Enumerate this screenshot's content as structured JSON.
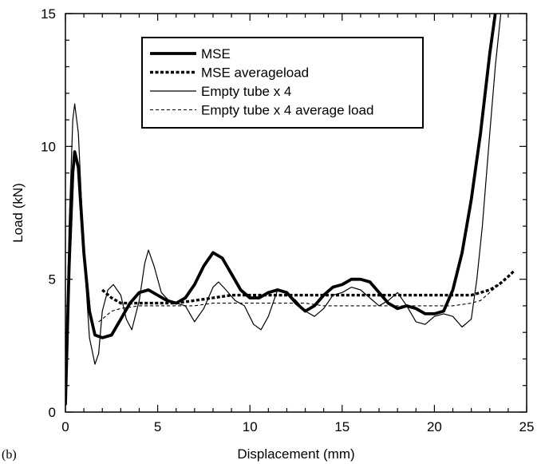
{
  "chart_data": {
    "type": "line",
    "panel_label": "(b)",
    "xlabel": "Displacement (mm)",
    "ylabel": "Load (kN)",
    "xlim": [
      0,
      25
    ],
    "ylim": [
      0,
      15
    ],
    "xticks": [
      0,
      5,
      10,
      15,
      20,
      25
    ],
    "yticks": [
      0,
      5,
      10,
      15
    ],
    "x_tick_labels": [
      "0",
      "5",
      "10",
      "15",
      "20",
      "25"
    ],
    "y_tick_labels": [
      "0",
      "5",
      "10",
      "15"
    ],
    "grid": false,
    "legend_position": "top-center",
    "series": [
      {
        "name": "MSE",
        "style": "thick-solid",
        "color": "#000000",
        "points": [
          [
            0,
            0.3
          ],
          [
            0.2,
            5.5
          ],
          [
            0.4,
            9.0
          ],
          [
            0.5,
            9.8
          ],
          [
            0.7,
            9.2
          ],
          [
            1.0,
            6.0
          ],
          [
            1.3,
            3.8
          ],
          [
            1.6,
            2.9
          ],
          [
            2.0,
            2.8
          ],
          [
            2.5,
            2.9
          ],
          [
            3.0,
            3.5
          ],
          [
            3.5,
            4.1
          ],
          [
            4.0,
            4.5
          ],
          [
            4.5,
            4.6
          ],
          [
            5.0,
            4.4
          ],
          [
            5.5,
            4.2
          ],
          [
            6.0,
            4.1
          ],
          [
            6.5,
            4.3
          ],
          [
            7.0,
            4.8
          ],
          [
            7.5,
            5.5
          ],
          [
            8.0,
            6.0
          ],
          [
            8.5,
            5.8
          ],
          [
            9.0,
            5.2
          ],
          [
            9.5,
            4.6
          ],
          [
            10.0,
            4.3
          ],
          [
            10.5,
            4.3
          ],
          [
            11.0,
            4.5
          ],
          [
            11.5,
            4.6
          ],
          [
            12.0,
            4.5
          ],
          [
            12.5,
            4.1
          ],
          [
            13.0,
            3.8
          ],
          [
            13.5,
            4.0
          ],
          [
            14.0,
            4.4
          ],
          [
            14.5,
            4.7
          ],
          [
            15.0,
            4.8
          ],
          [
            15.5,
            5.0
          ],
          [
            16.0,
            5.0
          ],
          [
            16.5,
            4.9
          ],
          [
            17.0,
            4.5
          ],
          [
            17.5,
            4.1
          ],
          [
            18.0,
            3.9
          ],
          [
            18.5,
            4.0
          ],
          [
            19.0,
            3.9
          ],
          [
            19.5,
            3.7
          ],
          [
            20.0,
            3.7
          ],
          [
            20.5,
            3.8
          ],
          [
            21.0,
            4.6
          ],
          [
            21.5,
            6.0
          ],
          [
            22.0,
            8.0
          ],
          [
            22.5,
            10.5
          ],
          [
            23.0,
            13.5
          ],
          [
            23.3,
            15.0
          ]
        ]
      },
      {
        "name": "MSE averageload",
        "style": "thick-dashed",
        "color": "#000000",
        "points": [
          [
            2.0,
            4.6
          ],
          [
            2.5,
            4.3
          ],
          [
            3.0,
            4.1
          ],
          [
            4.0,
            4.1
          ],
          [
            5.0,
            4.1
          ],
          [
            6.0,
            4.1
          ],
          [
            7.0,
            4.2
          ],
          [
            8.0,
            4.3
          ],
          [
            9.0,
            4.4
          ],
          [
            10.0,
            4.4
          ],
          [
            12.0,
            4.4
          ],
          [
            14.0,
            4.4
          ],
          [
            16.0,
            4.4
          ],
          [
            18.0,
            4.4
          ],
          [
            20.0,
            4.4
          ],
          [
            21.0,
            4.4
          ],
          [
            22.0,
            4.4
          ],
          [
            23.0,
            4.6
          ],
          [
            23.5,
            4.8
          ],
          [
            24.0,
            5.1
          ],
          [
            24.3,
            5.3
          ]
        ]
      },
      {
        "name": "Empty tube x 4",
        "style": "thin-solid",
        "color": "#000000",
        "points": [
          [
            0,
            0.5
          ],
          [
            0.2,
            7.0
          ],
          [
            0.4,
            11.0
          ],
          [
            0.5,
            11.6
          ],
          [
            0.7,
            10.5
          ],
          [
            1.0,
            6.0
          ],
          [
            1.3,
            2.8
          ],
          [
            1.6,
            1.8
          ],
          [
            1.8,
            2.2
          ],
          [
            2.0,
            3.8
          ],
          [
            2.3,
            4.6
          ],
          [
            2.6,
            4.8
          ],
          [
            3.0,
            4.4
          ],
          [
            3.3,
            3.5
          ],
          [
            3.6,
            3.1
          ],
          [
            4.0,
            4.2
          ],
          [
            4.3,
            5.6
          ],
          [
            4.5,
            6.1
          ],
          [
            4.8,
            5.5
          ],
          [
            5.2,
            4.5
          ],
          [
            5.6,
            4.2
          ],
          [
            6.0,
            4.1
          ],
          [
            6.5,
            4.0
          ],
          [
            7.0,
            3.4
          ],
          [
            7.5,
            3.9
          ],
          [
            8.0,
            4.7
          ],
          [
            8.3,
            4.9
          ],
          [
            8.7,
            4.6
          ],
          [
            9.2,
            4.2
          ],
          [
            9.7,
            4.0
          ],
          [
            10.2,
            3.3
          ],
          [
            10.6,
            3.1
          ],
          [
            11.0,
            3.6
          ],
          [
            11.5,
            4.6
          ],
          [
            12.0,
            4.5
          ],
          [
            12.5,
            4.2
          ],
          [
            13.0,
            3.8
          ],
          [
            13.5,
            3.6
          ],
          [
            14.0,
            3.9
          ],
          [
            14.5,
            4.4
          ],
          [
            15.0,
            4.5
          ],
          [
            15.5,
            4.7
          ],
          [
            16.0,
            4.6
          ],
          [
            16.5,
            4.3
          ],
          [
            17.0,
            4.0
          ],
          [
            17.5,
            4.2
          ],
          [
            18.0,
            4.5
          ],
          [
            18.5,
            4.0
          ],
          [
            19.0,
            3.4
          ],
          [
            19.5,
            3.3
          ],
          [
            20.0,
            3.6
          ],
          [
            20.5,
            3.7
          ],
          [
            21.0,
            3.6
          ],
          [
            21.5,
            3.2
          ],
          [
            22.0,
            3.5
          ],
          [
            22.3,
            5.0
          ],
          [
            22.6,
            7.0
          ],
          [
            23.0,
            10.5
          ],
          [
            23.3,
            13.0
          ],
          [
            23.6,
            15.0
          ]
        ]
      },
      {
        "name": "Empty tube x 4 average load",
        "style": "thin-dashed",
        "color": "#000000",
        "points": [
          [
            1.8,
            3.4
          ],
          [
            2.0,
            3.5
          ],
          [
            2.5,
            3.8
          ],
          [
            3.0,
            3.9
          ],
          [
            4.0,
            4.0
          ],
          [
            5.0,
            4.0
          ],
          [
            6.0,
            4.0
          ],
          [
            7.0,
            4.0
          ],
          [
            8.0,
            4.1
          ],
          [
            9.0,
            4.1
          ],
          [
            10.0,
            4.1
          ],
          [
            11.0,
            4.1
          ],
          [
            12.0,
            4.1
          ],
          [
            13.0,
            4.1
          ],
          [
            14.0,
            4.0
          ],
          [
            15.0,
            4.0
          ],
          [
            16.0,
            4.0
          ],
          [
            17.0,
            4.0
          ],
          [
            18.0,
            4.0
          ],
          [
            19.0,
            4.0
          ],
          [
            20.0,
            4.0
          ],
          [
            21.0,
            4.0
          ],
          [
            22.0,
            4.1
          ],
          [
            22.5,
            4.2
          ],
          [
            23.0,
            4.5
          ],
          [
            23.5,
            4.8
          ]
        ]
      }
    ]
  }
}
